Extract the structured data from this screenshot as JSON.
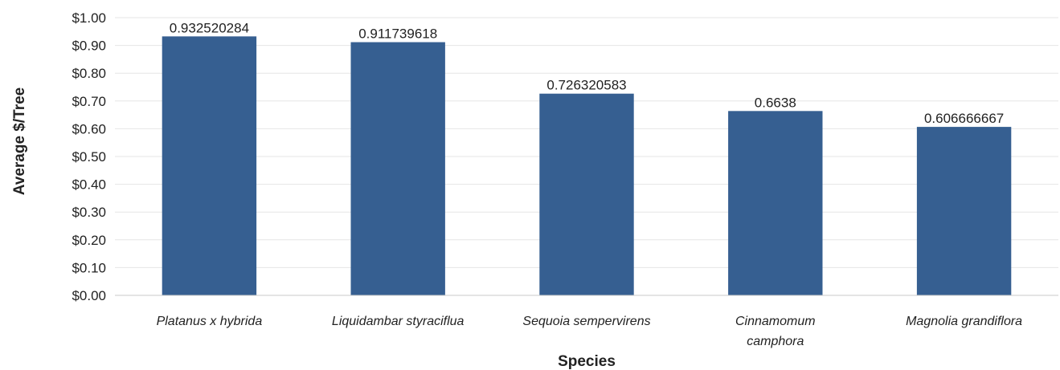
{
  "chart_data": {
    "type": "bar",
    "categories": [
      "Platanus x hybrida",
      "Liquidambar styraciflua",
      "Sequoia sempervirens",
      "Cinnamomum camphora",
      "Magnolia grandiflora"
    ],
    "category_lines": [
      [
        "Platanus x hybrida"
      ],
      [
        "Liquidambar styraciflua"
      ],
      [
        "Sequoia sempervirens"
      ],
      [
        "Cinnamomum",
        "camphora"
      ],
      [
        "Magnolia grandiflora"
      ]
    ],
    "values": [
      0.932520284,
      0.911739618,
      0.726320583,
      0.6638,
      0.606666667
    ],
    "data_labels": [
      "0.932520284",
      "0.911739618",
      "0.726320583",
      "0.6638",
      "0.606666667"
    ],
    "xlabel": "Species",
    "ylabel": "Average $/Tree",
    "ylim": [
      0,
      1.0
    ],
    "yticks": [
      0,
      0.1,
      0.2,
      0.3,
      0.4,
      0.5,
      0.6,
      0.7,
      0.8,
      0.9,
      1.0
    ],
    "ytick_labels": [
      "$0.00",
      "$0.10",
      "$0.20",
      "$0.30",
      "$0.40",
      "$0.50",
      "$0.60",
      "$0.70",
      "$0.80",
      "$0.90",
      "$1.00"
    ],
    "grid": true,
    "legend": "none",
    "colors": {
      "bar": "#365f91",
      "grid": "#e6e6e6",
      "axis": "#c8c8c8"
    }
  }
}
